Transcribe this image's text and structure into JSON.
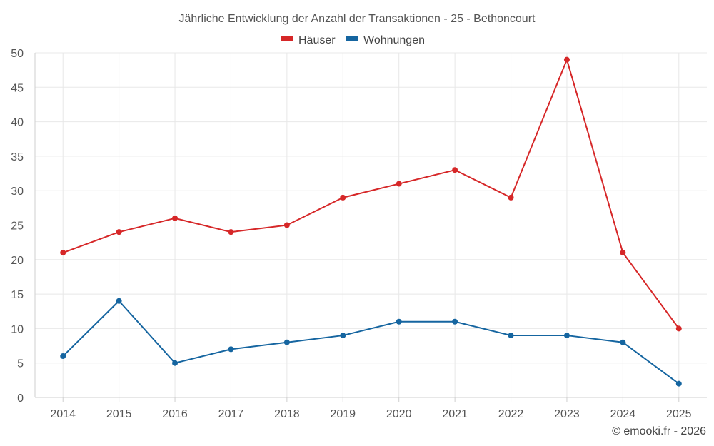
{
  "chart_data": {
    "type": "line",
    "title": "Jährliche Entwicklung der Anzahl der Transaktionen - 25 - Bethoncourt",
    "categories": [
      "2014",
      "2015",
      "2016",
      "2017",
      "2018",
      "2019",
      "2020",
      "2021",
      "2022",
      "2023",
      "2024",
      "2025"
    ],
    "series": [
      {
        "name": "Häuser",
        "color": "#d62728",
        "values": [
          21,
          24,
          26,
          24,
          25,
          29,
          31,
          33,
          29,
          49,
          21,
          10
        ]
      },
      {
        "name": "Wohnungen",
        "color": "#1565a0",
        "values": [
          6,
          14,
          5,
          7,
          8,
          9,
          11,
          11,
          9,
          9,
          8,
          2
        ]
      }
    ],
    "ylim": [
      0,
      50
    ],
    "yticks": [
      0,
      5,
      10,
      15,
      20,
      25,
      30,
      35,
      40,
      45,
      50
    ],
    "xlabel": "",
    "ylabel": "",
    "grid": true,
    "legend": "top-center"
  },
  "credit": "© emooki.fr - 2026"
}
